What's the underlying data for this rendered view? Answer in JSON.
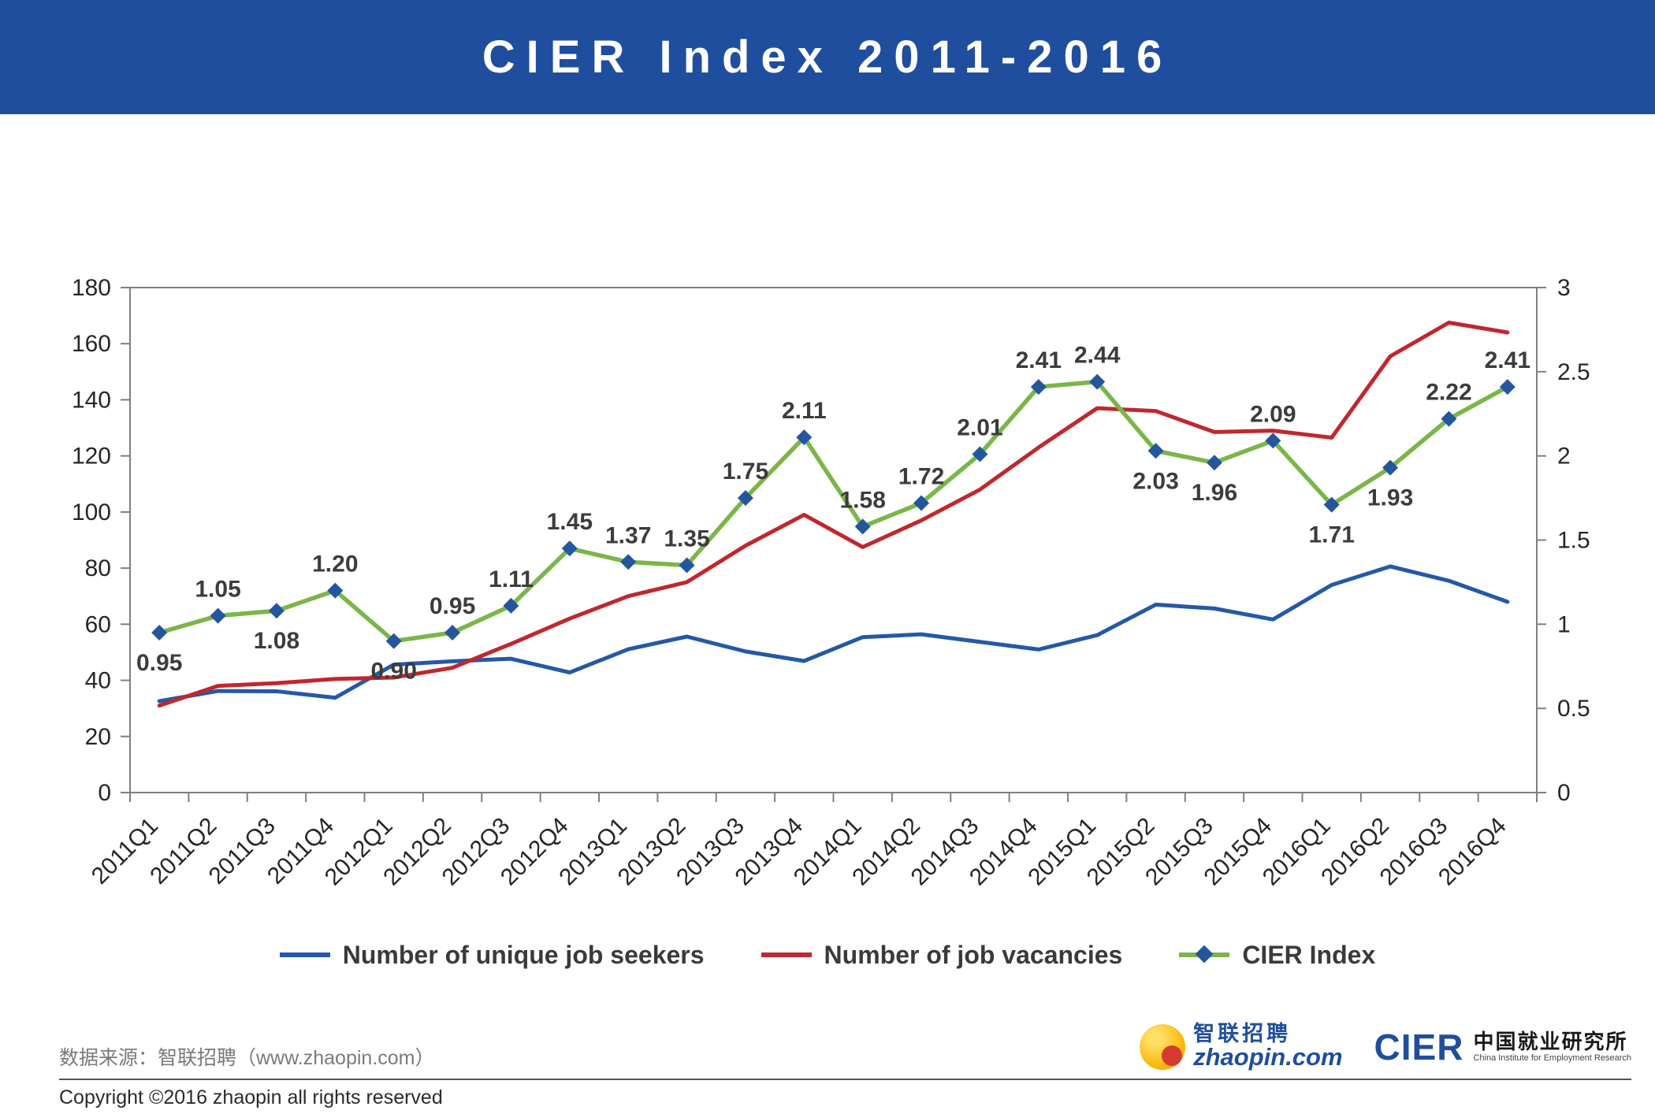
{
  "header": {
    "title": "CIER Index 2011-2016",
    "background": "#1F4E9E"
  },
  "chart_data": {
    "type": "line",
    "title": "CIER Index 2011-2016",
    "categories": [
      "2011Q1",
      "2011Q2",
      "2011Q3",
      "2011Q4",
      "2012Q1",
      "2012Q2",
      "2012Q3",
      "2012Q4",
      "2013Q1",
      "2013Q2",
      "2013Q3",
      "2013Q4",
      "2014Q1",
      "2014Q2",
      "2014Q3",
      "2014Q4",
      "2015Q1",
      "2015Q2",
      "2015Q3",
      "2015Q4",
      "2016Q1",
      "2016Q2",
      "2016Q3",
      "2016Q4"
    ],
    "series": [
      {
        "name": "Number of unique job seekers",
        "axis": "left",
        "color": "#2458A8",
        "width": 5,
        "values": [
          32.6,
          36.2,
          36.1,
          33.8,
          45.6,
          46.8,
          47.7,
          42.8,
          51.1,
          55.6,
          50.3,
          46.9,
          55.4,
          56.4,
          53.7,
          51.0,
          56.1,
          67.0,
          65.6,
          61.7,
          74.0,
          80.6,
          75.5,
          68.0
        ]
      },
      {
        "name": "Number of job vacancies",
        "axis": "left",
        "color": "#C1272D",
        "width": 5,
        "values": [
          31.0,
          38.0,
          39.0,
          40.5,
          41.0,
          44.5,
          53.0,
          62.0,
          70.0,
          75.0,
          88.0,
          99.0,
          87.5,
          97.0,
          108.0,
          123.0,
          137.0,
          136.0,
          128.5,
          129.0,
          126.5,
          155.5,
          167.5,
          164.0
        ]
      },
      {
        "name": "CIER Index",
        "axis": "right",
        "color": "#7AB648",
        "width": 5.5,
        "marker": "diamond",
        "marker_color": "#24569D",
        "values": [
          0.95,
          1.05,
          1.08,
          1.2,
          0.9,
          0.95,
          1.11,
          1.45,
          1.37,
          1.35,
          1.75,
          2.11,
          1.58,
          1.72,
          2.01,
          2.41,
          2.44,
          2.03,
          1.96,
          2.09,
          1.71,
          1.93,
          2.22,
          2.41
        ],
        "labels": [
          "0.95",
          "1.05",
          "1.08",
          "1.20",
          "0.90",
          "0.95",
          "1.11",
          "1.45",
          "1.37",
          "1.35",
          "1.75",
          "2.11",
          "1.58",
          "1.72",
          "2.01",
          "2.41",
          "2.44",
          "2.03",
          "1.96",
          "2.09",
          "1.71",
          "1.93",
          "2.22",
          "2.41"
        ],
        "label_positions": [
          "below",
          "above",
          "below",
          "above",
          "below",
          "above",
          "above",
          "above",
          "above",
          "above",
          "above",
          "above",
          "above",
          "above",
          "above",
          "above",
          "above",
          "below",
          "below",
          "above",
          "below",
          "below",
          "above",
          "above"
        ]
      }
    ],
    "left_axis": {
      "min": 0,
      "max": 180,
      "ticks": [
        0,
        20,
        40,
        60,
        80,
        100,
        120,
        140,
        160,
        180
      ]
    },
    "right_axis": {
      "min": 0,
      "max": 3,
      "ticks": [
        0,
        0.5,
        1,
        1.5,
        2,
        2.5,
        3
      ]
    },
    "grid": false,
    "legend_position": "bottom"
  },
  "legend": {
    "items": [
      {
        "label": "Number of unique job seekers",
        "color": "#2458A8",
        "marker": "line"
      },
      {
        "label": "Number of job vacancies",
        "color": "#C1272D",
        "marker": "line"
      },
      {
        "label": "CIER Index",
        "color": "#7AB648",
        "marker": "line-diamond"
      }
    ]
  },
  "footer": {
    "source": "数据来源：智联招聘（www.zhaopin.com）",
    "copyright": "Copyright ©2016 zhaopin all rights reserved",
    "zhaopin_logo": {
      "cn": "智联招聘",
      "en": "zhaopin.com"
    },
    "cier_logo": {
      "abbr": "CIER",
      "cn": "中国就业研究所",
      "en": "China Institute for Employment Research"
    }
  }
}
